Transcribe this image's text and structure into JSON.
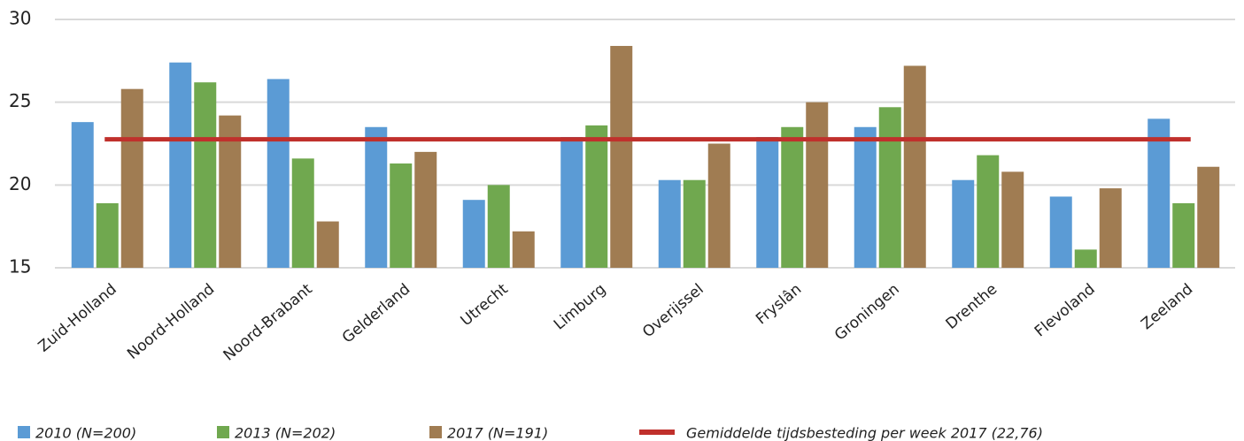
{
  "chart_data": {
    "type": "bar",
    "categories": [
      "Zuid-Holland",
      "Noord-Holland",
      "Noord-Brabant",
      "Gelderland",
      "Utrecht",
      "Limburg",
      "Overijssel",
      "Fryslân",
      "Groningen",
      "Drenthe",
      "Flevoland",
      "Zeeland"
    ],
    "series": [
      {
        "name": "2010 (N=200)",
        "color": "#5b9bd5",
        "values": [
          23.8,
          27.4,
          26.4,
          23.5,
          19.1,
          22.9,
          20.3,
          22.9,
          23.5,
          20.3,
          19.3,
          24.0
        ]
      },
      {
        "name": "2013 (N=202)",
        "color": "#70a84f",
        "values": [
          18.9,
          26.2,
          21.6,
          21.3,
          20.0,
          23.6,
          20.3,
          23.5,
          24.7,
          21.8,
          16.1,
          18.9
        ]
      },
      {
        "name": "2017 (N=191)",
        "color": "#a07c52",
        "values": [
          25.8,
          24.2,
          17.8,
          22.0,
          17.2,
          28.4,
          22.5,
          25.0,
          27.2,
          20.8,
          19.8,
          21.1
        ]
      }
    ],
    "reference_line": {
      "name": "Gemiddelde tijdsbesteding per week 2017 (22,76)",
      "value": 22.76,
      "color": "#c0302c"
    },
    "ylim": [
      15,
      30
    ],
    "yticks": [
      15,
      20,
      25,
      30
    ],
    "grid": true
  }
}
